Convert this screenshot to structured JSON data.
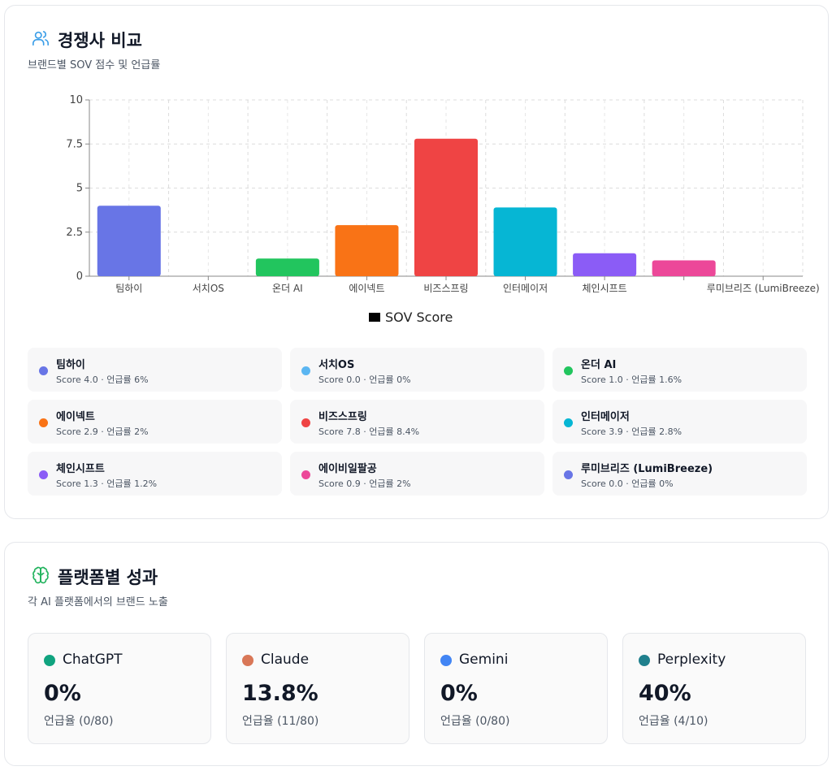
{
  "competitors": {
    "title": "경쟁사 비교",
    "subtitle": "브랜드별 SOV 점수 및 언급률",
    "icon": "users-icon",
    "legend_label_prefix": "Score",
    "mention_label": "언급률",
    "items": [
      {
        "name": "팀하이",
        "score": "4.0",
        "mention": "6%",
        "color": "#6875e6"
      },
      {
        "name": "서치OS",
        "score": "0.0",
        "mention": "0%",
        "color": "#5bb6f2"
      },
      {
        "name": "온더 AI",
        "score": "1.0",
        "mention": "1.6%",
        "color": "#22c55e"
      },
      {
        "name": "에이넥트",
        "score": "2.9",
        "mention": "2%",
        "color": "#f97316"
      },
      {
        "name": "비즈스프링",
        "score": "7.8",
        "mention": "8.4%",
        "color": "#ef4444"
      },
      {
        "name": "인터메이저",
        "score": "3.9",
        "mention": "2.8%",
        "color": "#06b6d4"
      },
      {
        "name": "체인시프트",
        "score": "1.3",
        "mention": "1.2%",
        "color": "#8b5cf6"
      },
      {
        "name": "에이비일팔공",
        "score": "0.9",
        "mention": "2%",
        "color": "#ec4899"
      },
      {
        "name": "루미브리즈 (LumiBreeze)",
        "score": "0.0",
        "mention": "0%",
        "color": "#6875e6"
      }
    ]
  },
  "chart_data": {
    "type": "bar",
    "categories": [
      "팀하이",
      "서치OS",
      "온더 AI",
      "에이넥트",
      "비즈스프링",
      "인터메이저",
      "체인시프트",
      "",
      "루미브리즈 (LumiBreeze)"
    ],
    "series": [
      {
        "name": "SOV Score",
        "values": [
          4.0,
          0.0,
          1.0,
          2.9,
          7.8,
          3.9,
          1.3,
          0.9,
          0.0
        ]
      }
    ],
    "colors": [
      "#6875e6",
      "#5bb6f2",
      "#22c55e",
      "#f97316",
      "#ef4444",
      "#06b6d4",
      "#8b5cf6",
      "#ec4899",
      "#6875e6"
    ],
    "yticks": [
      "0",
      "2.5",
      "5",
      "7.5",
      "10"
    ],
    "ylim": [
      0,
      10
    ],
    "grid": true,
    "legend": "bottom-center",
    "legend_label": "SOV Score"
  },
  "platforms": {
    "title": "플랫폼별 성과",
    "subtitle": "각 AI 플랫폼에서의 브랜드 노출",
    "icon": "brain-icon",
    "items": [
      {
        "name": "ChatGPT",
        "value": "0%",
        "detail": "언급율 (0/80)",
        "color": "#10a37f"
      },
      {
        "name": "Claude",
        "value": "13.8%",
        "detail": "언급율 (11/80)",
        "color": "#d97757"
      },
      {
        "name": "Gemini",
        "value": "0%",
        "detail": "언급율 (0/80)",
        "color": "#4285f4"
      },
      {
        "name": "Perplexity",
        "value": "40%",
        "detail": "언급율 (4/10)",
        "color": "#20808d"
      }
    ]
  }
}
